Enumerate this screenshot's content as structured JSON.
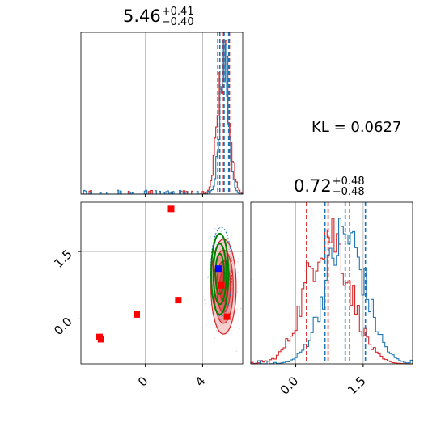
{
  "kl": {
    "label": "KL",
    "value": "0.0627"
  },
  "panel_titles": [
    {
      "value": "5.46",
      "plus": "+0.41",
      "minus": "−0.40"
    },
    {
      "value": "0.72",
      "plus": "+0.48",
      "minus": "−0.48"
    }
  ],
  "colors": {
    "red": "#d62728",
    "blue": "#1f77b4",
    "green": "#008000",
    "grid": "#b0b0b0",
    "marker_red": "#ff0000",
    "marker_blue": "#0000ff"
  },
  "chart_data": [
    {
      "type": "histogram",
      "panel": "x1-marginal",
      "xlim": [
        -4.5,
        6.8
      ],
      "series": [
        {
          "name": "",
          "color": "red",
          "center": 5.46,
          "sd": 0.4
        },
        {
          "name": "",
          "color": "blue",
          "center": 5.5,
          "sd": 0.32
        }
      ],
      "quantile_lines": {
        "red": [
          5.06,
          5.87
        ],
        "blue": [
          5.2,
          5.82
        ]
      },
      "median_lines": {
        "red": 5.46,
        "blue": 5.5
      }
    },
    {
      "type": "scatter",
      "panel": "joint",
      "xlim": [
        -4.5,
        6.8
      ],
      "ylim": [
        -1.0,
        2.6
      ],
      "xticks": [
        0,
        4
      ],
      "xtick_labels": [
        "0",
        "4"
      ],
      "yticks": [
        0.0,
        1.5
      ],
      "ytick_labels": [
        "0.0",
        "1.5"
      ],
      "red_points": [
        [
          -3.2,
          -0.4
        ],
        [
          -3.1,
          -0.45
        ],
        [
          -0.6,
          0.1
        ],
        [
          1.8,
          2.45
        ],
        [
          2.3,
          0.42
        ],
        [
          5.7,
          0.05
        ],
        [
          5.3,
          0.75
        ]
      ],
      "blue_point": [
        5.1,
        1.12
      ],
      "contours": [
        {
          "color": "red",
          "center": [
            5.46,
            0.72
          ],
          "sd": [
            0.4,
            0.48
          ]
        },
        {
          "color": "green",
          "center": [
            5.2,
            1.0
          ],
          "sd": [
            0.3,
            0.45
          ]
        }
      ]
    },
    {
      "type": "histogram",
      "panel": "x2-marginal",
      "xlim": [
        -1.0,
        2.6
      ],
      "xticks": [
        0.0,
        1.5
      ],
      "xtick_labels": [
        "0.0",
        "1.5"
      ],
      "series": [
        {
          "name": "",
          "color": "red",
          "center": 0.72,
          "sd": 0.48
        },
        {
          "name": "",
          "color": "blue",
          "center": 1.1,
          "sd": 0.45
        }
      ],
      "quantile_lines": {
        "red": [
          0.24,
          1.2
        ],
        "blue": [
          0.65,
          1.55
        ]
      },
      "median_lines": {
        "red": 0.72,
        "blue": 1.1
      }
    }
  ]
}
